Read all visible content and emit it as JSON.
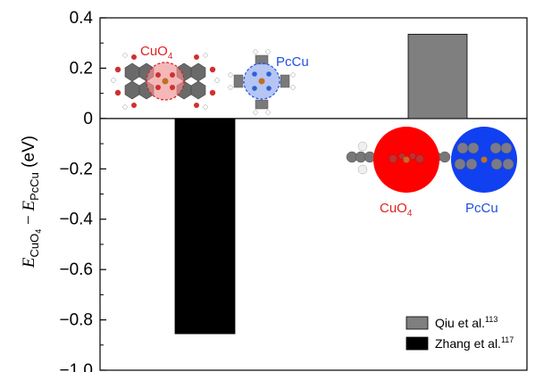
{
  "chart_data": {
    "type": "bar",
    "ylabel": {
      "var1": "E",
      "sub1": "CuO",
      "subsub1": "4",
      "minus": " − ",
      "var2": "E",
      "sub2": "PcCu",
      "unit": " (eV)"
    },
    "ylim": [
      -1.0,
      0.4
    ],
    "yticks": [
      0.4,
      0.2,
      0,
      -0.2,
      -0.4,
      -0.6,
      -0.8,
      -1.0
    ],
    "ytick_labels": [
      "0.4",
      "0.2",
      "0",
      "−0.2",
      "−0.4",
      "−0.6",
      "−0.8",
      "−1.0"
    ],
    "series": [
      {
        "name": "Qiu et al.",
        "ref": "113",
        "value": 0.335,
        "color": "#7f7f7f"
      },
      {
        "name": "Zhang et al.",
        "ref": "117",
        "value": -0.855,
        "color": "#000000"
      }
    ],
    "annotations": {
      "inset_left": {
        "cuo4": "CuO",
        "cuo4_sub": "4",
        "pccu": "PcCu"
      },
      "inset_right": {
        "cuo4": "CuO",
        "cuo4_sub": "4",
        "pccu": "PcCu"
      }
    },
    "colors": {
      "cuo4": "#e02020",
      "pccu": "#2050e0"
    },
    "grid": false,
    "legend_position": "bottom-right"
  }
}
